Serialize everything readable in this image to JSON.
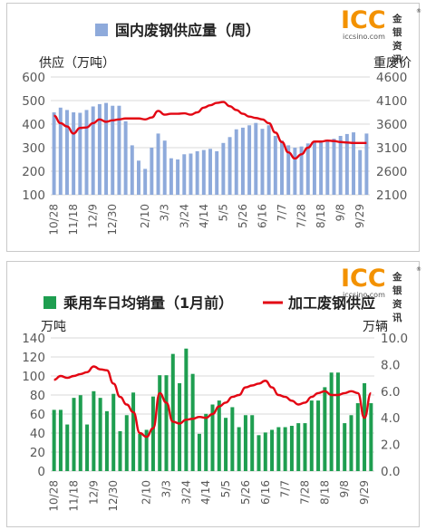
{
  "logo": {
    "brand": "ICC",
    "cn": "金银资讯",
    "url": "iccsino.com",
    "reg": "®"
  },
  "colors": {
    "bar_blue": "#8eaadb",
    "line_red": "#e30613",
    "bar_green": "#1e9e50",
    "logo_orange": "#f39200",
    "logo_blue": "#0a3d8f",
    "grid": "#d9d9d9",
    "axis_text": "#595959"
  },
  "chart_data": [
    {
      "type": "bar",
      "title": "",
      "legend": [
        {
          "name": "国内废钢供应量（周）",
          "marker": "square",
          "color": "#8eaadb"
        }
      ],
      "left_axis_title": "供应（万吨）",
      "right_axis_title": "重废价",
      "ylim": [
        100,
        600
      ],
      "y_ticks": [
        "600",
        "500",
        "400",
        "300",
        "200",
        "100"
      ],
      "y2lim": [
        2100,
        4600
      ],
      "y2_ticks": [
        "4600",
        "4100",
        "3600",
        "3100",
        "2600",
        "2100"
      ],
      "x_tick_labels": [
        {
          "index": 0,
          "label": "10/28"
        },
        {
          "index": 3,
          "label": "11/18"
        },
        {
          "index": 6,
          "label": "12/9"
        },
        {
          "index": 9,
          "label": "12/30"
        },
        {
          "index": 14,
          "label": "2/10"
        },
        {
          "index": 17,
          "label": "3/3"
        },
        {
          "index": 20,
          "label": "3/24"
        },
        {
          "index": 23,
          "label": "4/14"
        },
        {
          "index": 26,
          "label": "5/5"
        },
        {
          "index": 29,
          "label": "5/26"
        },
        {
          "index": 32,
          "label": "6/16"
        },
        {
          "index": 35,
          "label": "7/7"
        },
        {
          "index": 38,
          "label": "7/28"
        },
        {
          "index": 41,
          "label": "8/18"
        },
        {
          "index": 44,
          "label": "9/8"
        },
        {
          "index": 47,
          "label": "9/29"
        }
      ],
      "series": [
        {
          "name": "国内废钢供应量（周）",
          "type": "bar",
          "axis": "left",
          "values": [
            450,
            470,
            460,
            450,
            448,
            460,
            475,
            485,
            490,
            478,
            478,
            412,
            310,
            245,
            210,
            300,
            360,
            330,
            255,
            250,
            272,
            275,
            285,
            290,
            295,
            285,
            320,
            345,
            378,
            385,
            395,
            405,
            380,
            395,
            350,
            330,
            310,
            300,
            305,
            318,
            322,
            325,
            330,
            338,
            350,
            358,
            365,
            290,
            360
          ]
        },
        {
          "name": "重废价",
          "type": "line",
          "axis": "right",
          "values": [
            3780,
            3620,
            3550,
            3400,
            3520,
            3530,
            3620,
            3700,
            3650,
            3680,
            3700,
            3720,
            3720,
            3720,
            3700,
            3740,
            3880,
            3800,
            3820,
            3820,
            3830,
            3800,
            3850,
            3950,
            4000,
            4050,
            4070,
            3980,
            3900,
            3820,
            3760,
            3730,
            3700,
            3620,
            3420,
            3220,
            3000,
            2870,
            2960,
            3100,
            3230,
            3230,
            3250,
            3240,
            3220,
            3210,
            3200,
            3200,
            3200
          ]
        }
      ]
    },
    {
      "type": "bar",
      "title": "",
      "legend": [
        {
          "name": "乘用车日均销量（1月前）",
          "marker": "square",
          "color": "#1e9e50"
        },
        {
          "name": "加工废钢供应",
          "marker": "line",
          "color": "#e30613"
        }
      ],
      "left_axis_title": "万吨",
      "right_axis_title": "万辆",
      "ylim": [
        0,
        140
      ],
      "y_ticks": [
        "140",
        "120",
        "100",
        "80",
        "60",
        "40",
        "20",
        "0"
      ],
      "y2lim": [
        0,
        10
      ],
      "y2_ticks": [
        "10.0",
        "8.0",
        "6.0",
        "4.0",
        "2.0",
        "0.0"
      ],
      "x_tick_labels": [
        {
          "index": 0,
          "label": "10/28"
        },
        {
          "index": 3,
          "label": "11/18"
        },
        {
          "index": 6,
          "label": "12/9"
        },
        {
          "index": 9,
          "label": "12/30"
        },
        {
          "index": 14,
          "label": "2/10"
        },
        {
          "index": 17,
          "label": "3/3"
        },
        {
          "index": 20,
          "label": "3/24"
        },
        {
          "index": 23,
          "label": "4/14"
        },
        {
          "index": 26,
          "label": "5/5"
        },
        {
          "index": 29,
          "label": "5/26"
        },
        {
          "index": 32,
          "label": "6/16"
        },
        {
          "index": 35,
          "label": "7/7"
        },
        {
          "index": 38,
          "label": "7/28"
        },
        {
          "index": 41,
          "label": "8/18"
        },
        {
          "index": 44,
          "label": "9/8"
        },
        {
          "index": 47,
          "label": "9/29"
        }
      ],
      "series": [
        {
          "name": "乘用车日均销量（1月前）",
          "type": "bar",
          "axis": "right",
          "values": [
            4.6,
            4.6,
            3.5,
            5.5,
            5.7,
            3.5,
            6.0,
            5.5,
            4.5,
            5.8,
            3.0,
            4.2,
            5.9,
            2.8,
            3.1,
            5.6,
            7.2,
            7.2,
            8.8,
            6.6,
            9.2,
            7.3,
            2.8,
            4.3,
            5.0,
            5.3,
            4.0,
            4.8,
            3.3,
            4.2,
            4.2,
            2.7,
            2.9,
            3.1,
            3.3,
            3.3,
            3.4,
            3.6,
            3.6,
            5.3,
            5.3,
            6.3,
            7.4,
            7.4,
            3.6,
            4.2,
            5.1,
            6.6,
            5.1
          ]
        },
        {
          "name": "加工废钢供应",
          "type": "line",
          "axis": "left",
          "values": [
            96,
            100,
            98,
            100,
            102,
            104,
            110,
            107,
            106,
            92,
            78,
            70,
            62,
            40,
            36,
            45,
            82,
            72,
            52,
            50,
            54,
            55,
            57,
            56,
            60,
            68,
            72,
            78,
            80,
            88,
            90,
            92,
            95,
            88,
            80,
            78,
            74,
            70,
            72,
            78,
            82,
            84,
            80,
            80,
            82,
            84,
            82,
            56,
            82
          ]
        }
      ]
    }
  ]
}
